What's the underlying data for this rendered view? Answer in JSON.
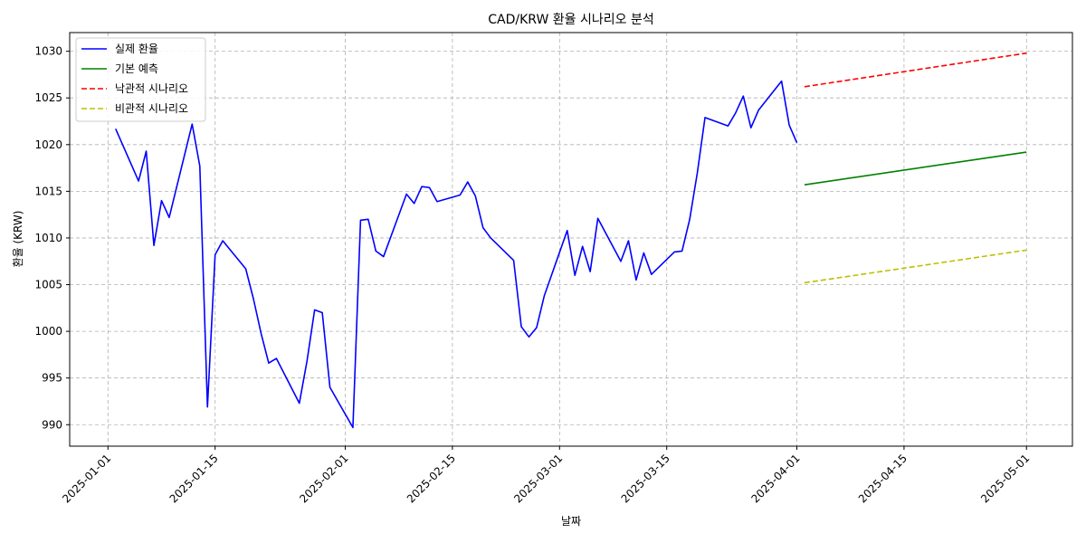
{
  "chart_data": {
    "type": "line",
    "title": "CAD/KRW 환율 시나리오 분석",
    "xlabel": "날짜",
    "ylabel": "환율 (KRW)",
    "xlim": [
      "2024-12-27",
      "2025-05-07"
    ],
    "ylim": [
      987.7,
      1032.0
    ],
    "x_ticks": [
      "2025-01-01",
      "2025-01-15",
      "2025-02-01",
      "2025-02-15",
      "2025-03-01",
      "2025-03-15",
      "2025-04-01",
      "2025-04-15",
      "2025-05-01"
    ],
    "y_ticks": [
      990,
      995,
      1000,
      1005,
      1010,
      1015,
      1020,
      1025,
      1030
    ],
    "grid": true,
    "legend_position": "top-left",
    "series": [
      {
        "name": "실제 환율",
        "color": "#0000ff",
        "style": "solid",
        "x": [
          "2025-01-02",
          "2025-01-05",
          "2025-01-06",
          "2025-01-07",
          "2025-01-08",
          "2025-01-09",
          "2025-01-12",
          "2025-01-13",
          "2025-01-14",
          "2025-01-15",
          "2025-01-16",
          "2025-01-19",
          "2025-01-20",
          "2025-01-21",
          "2025-01-22",
          "2025-01-23",
          "2025-01-26",
          "2025-01-27",
          "2025-01-28",
          "2025-01-29",
          "2025-01-30",
          "2025-02-02",
          "2025-02-03",
          "2025-02-04",
          "2025-02-05",
          "2025-02-06",
          "2025-02-09",
          "2025-02-10",
          "2025-02-11",
          "2025-02-12",
          "2025-02-13",
          "2025-02-16",
          "2025-02-17",
          "2025-02-18",
          "2025-02-19",
          "2025-02-20",
          "2025-02-23",
          "2025-02-24",
          "2025-02-25",
          "2025-02-26",
          "2025-02-27",
          "2025-03-02",
          "2025-03-03",
          "2025-03-04",
          "2025-03-05",
          "2025-03-06",
          "2025-03-09",
          "2025-03-10",
          "2025-03-11",
          "2025-03-12",
          "2025-03-13",
          "2025-03-16",
          "2025-03-17",
          "2025-03-18",
          "2025-03-19",
          "2025-03-20",
          "2025-03-23",
          "2025-03-24",
          "2025-03-25",
          "2025-03-26",
          "2025-03-27",
          "2025-03-30",
          "2025-03-31",
          "2025-04-01"
        ],
        "values": [
          1021.7,
          1016.1,
          1019.3,
          1009.2,
          1014.0,
          1012.2,
          1022.2,
          1017.7,
          991.9,
          1008.2,
          1009.7,
          1006.7,
          1003.5,
          999.8,
          996.6,
          997.1,
          992.3,
          996.8,
          1002.3,
          1002.0,
          994.0,
          989.7,
          1011.9,
          1012.0,
          1008.6,
          1008.0,
          1014.7,
          1013.7,
          1015.5,
          1015.4,
          1013.9,
          1014.6,
          1016.0,
          1014.5,
          1011.1,
          1010.0,
          1007.6,
          1000.5,
          999.4,
          1000.4,
          1003.8,
          1010.8,
          1006.0,
          1009.1,
          1006.4,
          1012.1,
          1007.5,
          1009.7,
          1005.5,
          1008.4,
          1006.1,
          1008.5,
          1008.6,
          1012.0,
          1017.0,
          1022.9,
          1022.0,
          1023.4,
          1025.2,
          1021.8,
          1023.7,
          1026.8,
          1022.1,
          1020.2
        ]
      },
      {
        "name": "기본 예측",
        "color": "#008000",
        "style": "solid",
        "x": [
          "2025-04-02",
          "2025-05-01"
        ],
        "values": [
          1015.7,
          1019.2
        ]
      },
      {
        "name": "낙관적 시나리오",
        "color": "#ff0000",
        "style": "dashed",
        "x": [
          "2025-04-02",
          "2025-05-01"
        ],
        "values": [
          1026.2,
          1029.8
        ]
      },
      {
        "name": "비관적 시나리오",
        "color": "#bfbf00",
        "style": "dashed",
        "x": [
          "2025-04-02",
          "2025-05-01"
        ],
        "values": [
          1005.2,
          1008.7
        ]
      }
    ]
  }
}
